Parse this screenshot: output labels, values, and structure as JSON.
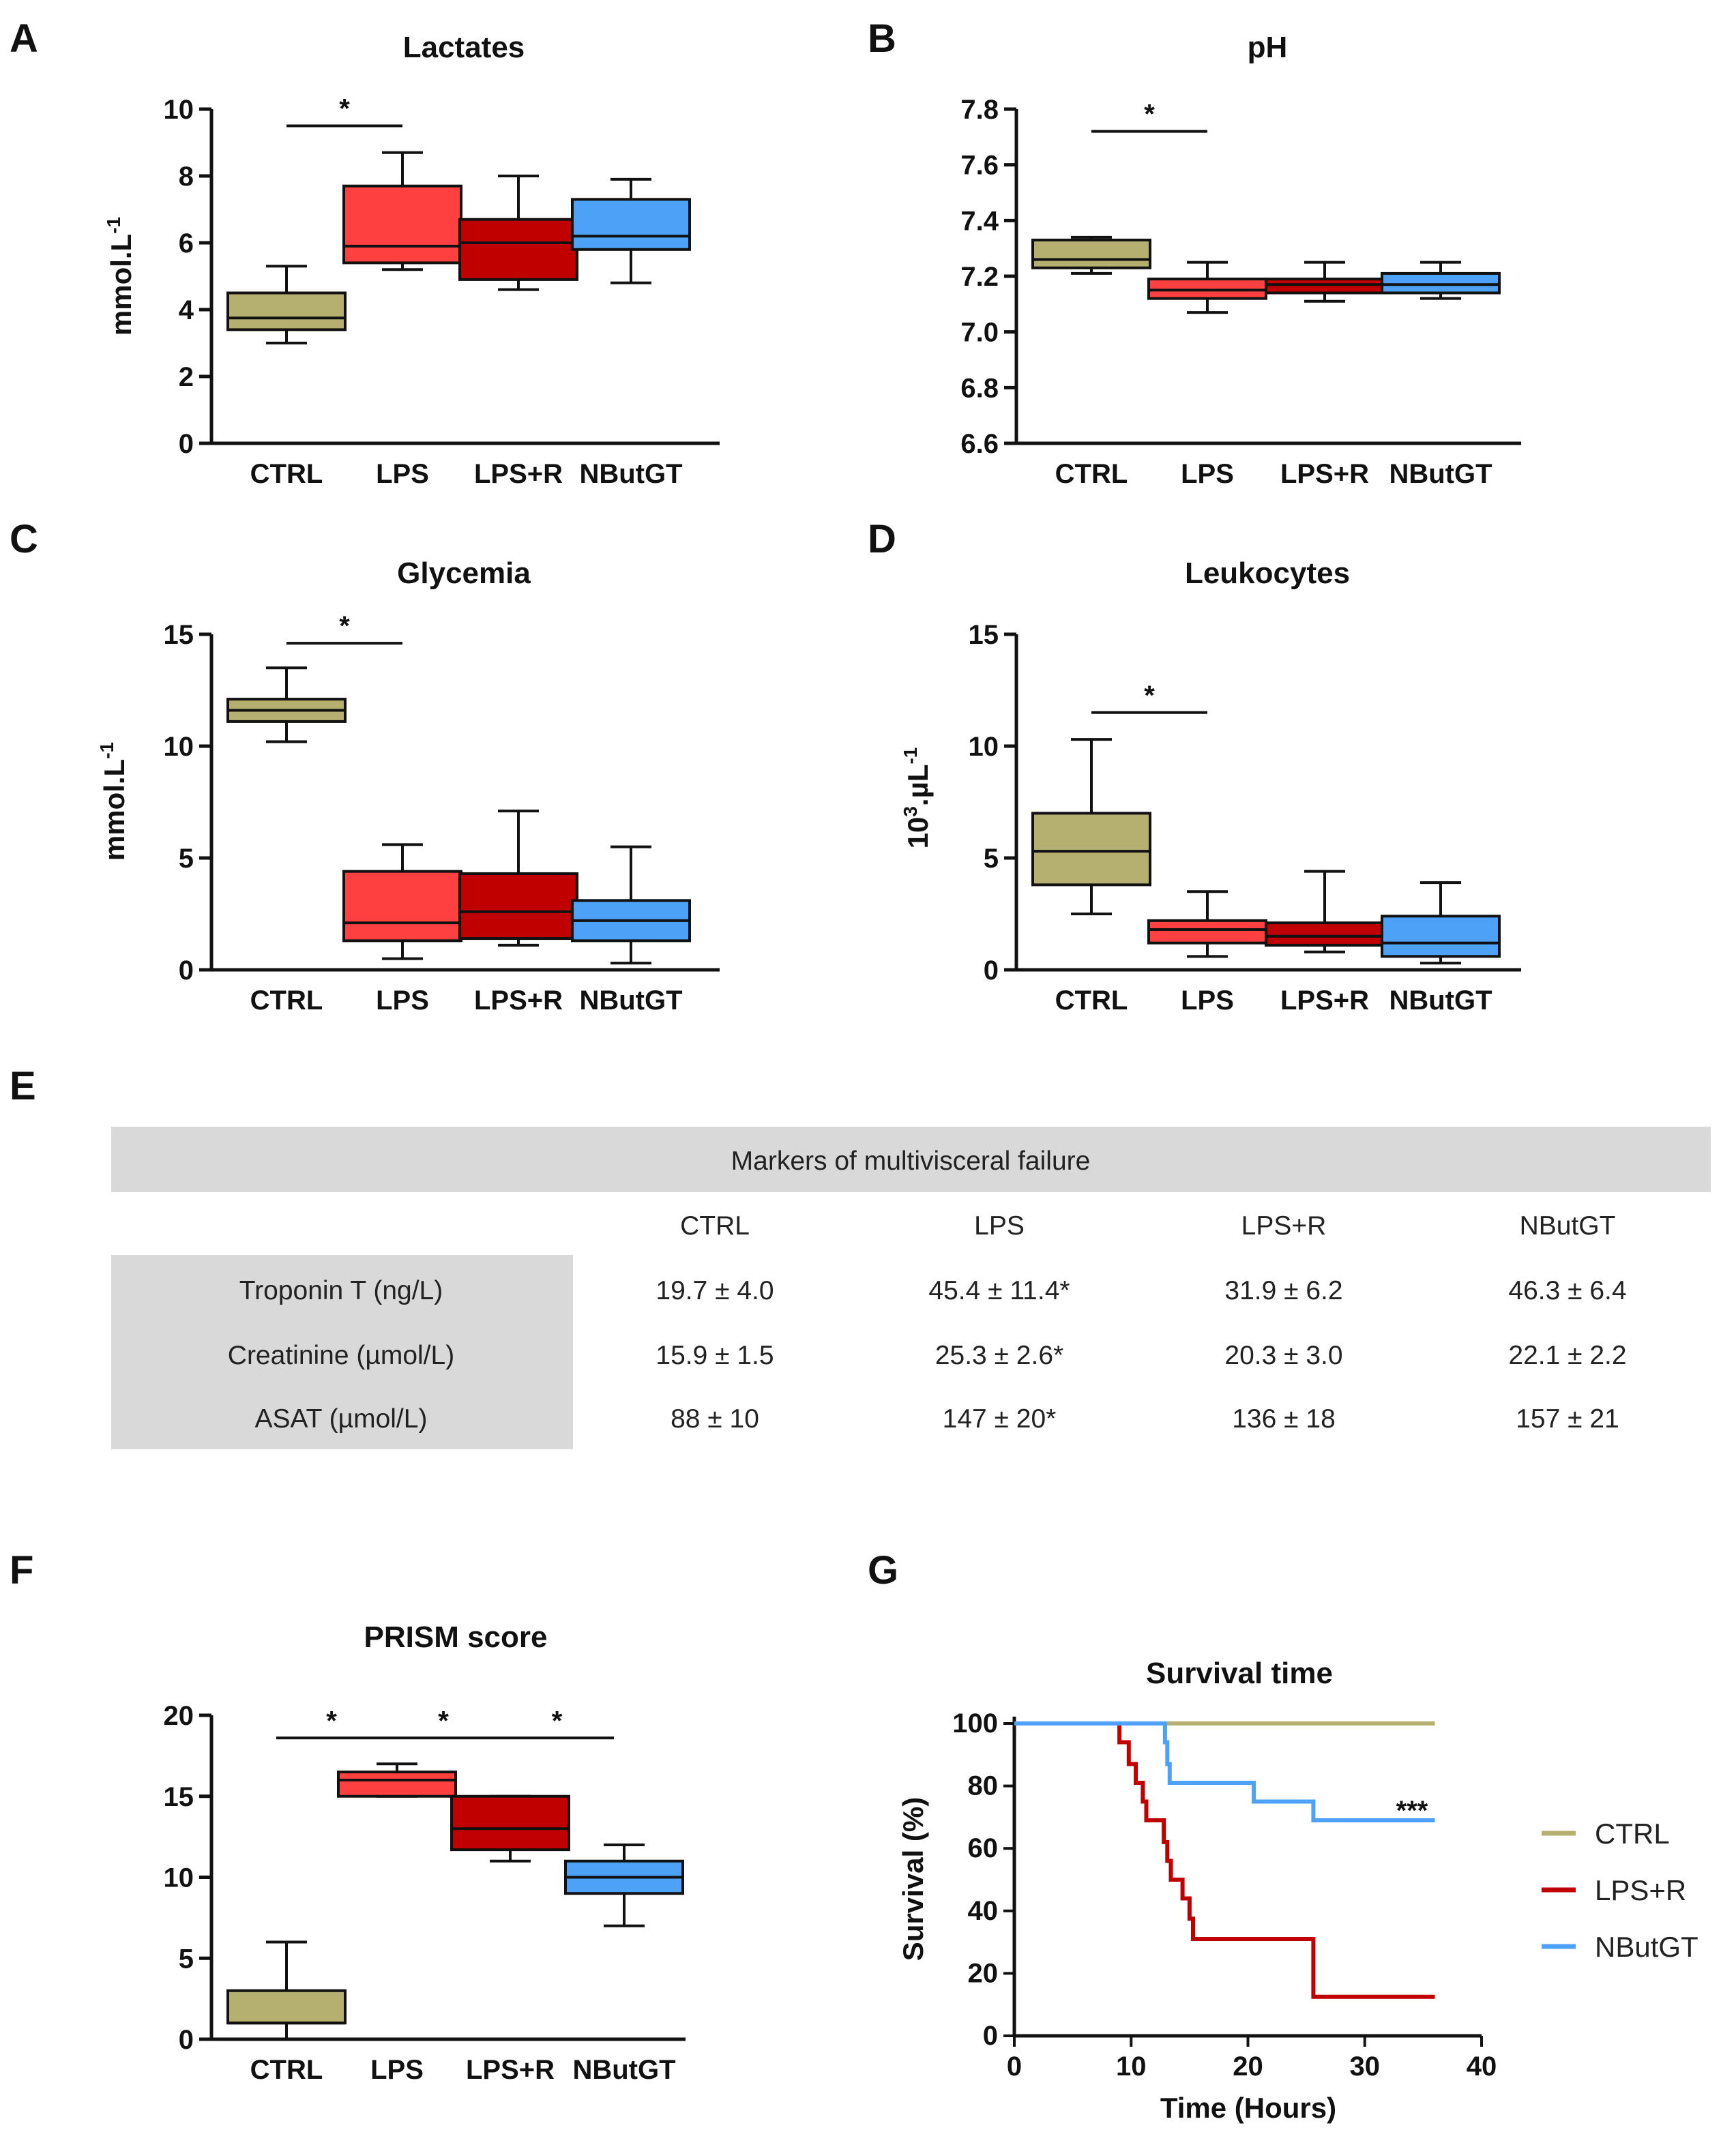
{
  "chart_data": [
    {
      "panel": "A",
      "type": "box",
      "title": "Lactates",
      "ylabel": "mmol.L",
      "ylabel_sup": "-1",
      "ylim": [
        0,
        10
      ],
      "yticks": [
        "0",
        "2",
        "4",
        "6",
        "8",
        "10"
      ],
      "categories": [
        "CTRL",
        "LPS",
        "LPS+R",
        "NButGT"
      ],
      "colors": [
        "#b5b06f",
        "#ff4040",
        "#c00000",
        "#4da2f7"
      ],
      "boxes": [
        {
          "min": 3.0,
          "q1": 3.4,
          "median": 3.75,
          "q3": 4.5,
          "max": 5.3
        },
        {
          "min": 5.2,
          "q1": 5.4,
          "median": 5.9,
          "q3": 7.7,
          "max": 8.7
        },
        {
          "min": 4.6,
          "q1": 4.9,
          "median": 6.0,
          "q3": 6.7,
          "max": 8.0
        },
        {
          "min": 4.8,
          "q1": 5.8,
          "median": 6.2,
          "q3": 7.3,
          "max": 7.9
        }
      ],
      "significance": [
        {
          "from": 0,
          "to": 1,
          "y": 9.5,
          "label": "*"
        }
      ]
    },
    {
      "panel": "B",
      "type": "box",
      "title": "pH",
      "ylabel": "",
      "ylabel_sup": "",
      "ylim": [
        6.6,
        7.8
      ],
      "yticks": [
        "6.6",
        "6.8",
        "7.0",
        "7.2",
        "7.4",
        "7.6",
        "7.8"
      ],
      "categories": [
        "CTRL",
        "LPS",
        "LPS+R",
        "NButGT"
      ],
      "colors": [
        "#b5b06f",
        "#ff4040",
        "#c00000",
        "#4da2f7"
      ],
      "boxes": [
        {
          "min": 7.21,
          "q1": 7.23,
          "median": 7.26,
          "q3": 7.33,
          "max": 7.34
        },
        {
          "min": 7.07,
          "q1": 7.12,
          "median": 7.15,
          "q3": 7.19,
          "max": 7.25
        },
        {
          "min": 7.11,
          "q1": 7.14,
          "median": 7.17,
          "q3": 7.19,
          "max": 7.25
        },
        {
          "min": 7.12,
          "q1": 7.14,
          "median": 7.17,
          "q3": 7.21,
          "max": 7.25
        }
      ],
      "significance": [
        {
          "from": 0,
          "to": 1,
          "y": 7.72,
          "label": "*"
        }
      ]
    },
    {
      "panel": "C",
      "type": "box",
      "title": "Glycemia",
      "ylabel": "mmol.L",
      "ylabel_sup": "-1",
      "ylim": [
        0,
        15
      ],
      "yticks": [
        "0",
        "5",
        "10",
        "15"
      ],
      "categories": [
        "CTRL",
        "LPS",
        "LPS+R",
        "NButGT"
      ],
      "colors": [
        "#b5b06f",
        "#ff4040",
        "#c00000",
        "#4da2f7"
      ],
      "boxes": [
        {
          "min": 10.2,
          "q1": 11.1,
          "median": 11.6,
          "q3": 12.1,
          "max": 13.5
        },
        {
          "min": 0.5,
          "q1": 1.3,
          "median": 2.1,
          "q3": 4.4,
          "max": 5.6
        },
        {
          "min": 1.1,
          "q1": 1.4,
          "median": 2.6,
          "q3": 4.3,
          "max": 7.1
        },
        {
          "min": 0.3,
          "q1": 1.3,
          "median": 2.2,
          "q3": 3.1,
          "max": 5.5
        }
      ],
      "significance": [
        {
          "from": 0,
          "to": 1,
          "y": 14.6,
          "label": "*"
        }
      ]
    },
    {
      "panel": "D",
      "type": "box",
      "title": "Leukocytes",
      "ylabel": "10",
      "ylabel_mid": ".µL",
      "ylabel_sup1": "3",
      "ylabel_sup": "-1",
      "ylim": [
        0,
        15
      ],
      "yticks": [
        "0",
        "5",
        "10",
        "15"
      ],
      "categories": [
        "CTRL",
        "LPS",
        "LPS+R",
        "NButGT"
      ],
      "colors": [
        "#b5b06f",
        "#ff4040",
        "#c00000",
        "#4da2f7"
      ],
      "boxes": [
        {
          "min": 2.5,
          "q1": 3.8,
          "median": 5.3,
          "q3": 7.0,
          "max": 10.3
        },
        {
          "min": 0.6,
          "q1": 1.2,
          "median": 1.8,
          "q3": 2.2,
          "max": 3.5
        },
        {
          "min": 0.8,
          "q1": 1.1,
          "median": 1.5,
          "q3": 2.1,
          "max": 4.4
        },
        {
          "min": 0.3,
          "q1": 0.6,
          "median": 1.2,
          "q3": 2.4,
          "max": 3.9
        }
      ],
      "significance": [
        {
          "from": 0,
          "to": 1,
          "y": 11.5,
          "label": "*"
        }
      ]
    },
    {
      "panel": "E",
      "type": "table",
      "title": "Markers of multivisceral failure",
      "columns": [
        "CTRL",
        "LPS",
        "LPS+R",
        "NButGT"
      ],
      "rows": [
        {
          "label": "Troponin T (ng/L)",
          "values": [
            "19.7 ± 4.0",
            "45.4 ± 11.4*",
            "31.9 ± 6.2",
            "46.3 ± 6.4"
          ]
        },
        {
          "label": "Creatinine (µmol/L)",
          "values": [
            "15.9 ± 1.5",
            "25.3 ± 2.6*",
            "20.3 ± 3.0",
            "22.1 ± 2.2"
          ]
        },
        {
          "label": "ASAT (µmol/L)",
          "values": [
            "88 ± 10",
            "147 ± 20*",
            "136 ± 18",
            "157 ± 21"
          ]
        }
      ]
    },
    {
      "panel": "F",
      "type": "box",
      "title": "PRISM score",
      "ylabel": "",
      "ylabel_sup": "",
      "ylim": [
        0,
        20
      ],
      "yticks": [
        "0",
        "5",
        "10",
        "15",
        "20"
      ],
      "categories": [
        "CTRL",
        "LPS",
        "LPS+R",
        "NButGT"
      ],
      "colors": [
        "#b5b06f",
        "#ff4040",
        "#c00000",
        "#4da2f7"
      ],
      "boxes": [
        {
          "min": 0,
          "q1": 1.0,
          "median": 1.0,
          "q3": 3.0,
          "max": 6.0
        },
        {
          "min": 15.0,
          "q1": 15.0,
          "median": 16.0,
          "q3": 16.5,
          "max": 17.0
        },
        {
          "min": 11.0,
          "q1": 11.7,
          "median": 13.0,
          "q3": 15.0,
          "max": 15.0
        },
        {
          "min": 7.0,
          "q1": 9.0,
          "median": 10.0,
          "q3": 11.0,
          "max": 12.0
        }
      ],
      "significance": [
        {
          "from": 0,
          "to": 1,
          "y": 18.6,
          "label": "*"
        },
        {
          "from": 1,
          "to": 2,
          "y": 18.6,
          "label": "*"
        },
        {
          "from": 2,
          "to": 3,
          "y": 18.6,
          "label": "*"
        }
      ]
    },
    {
      "panel": "G",
      "type": "line",
      "title": "Survival time",
      "xlabel": "Time (Hours)",
      "ylabel": "Survival (%)",
      "xlim": [
        0,
        40
      ],
      "ylim": [
        0,
        100
      ],
      "xticks": [
        "0",
        "10",
        "20",
        "30",
        "40"
      ],
      "yticks": [
        "0",
        "20",
        "40",
        "60",
        "80",
        "100"
      ],
      "annotation": "***",
      "series": [
        {
          "name": "CTRL",
          "color": "#b5b06f",
          "steps": [
            [
              0,
              100
            ],
            [
              36,
              100
            ]
          ]
        },
        {
          "name": "LPS+R",
          "color": "#c00000",
          "steps": [
            [
              0,
              100
            ],
            [
              9,
              100
            ],
            [
              9,
              94
            ],
            [
              9.8,
              94
            ],
            [
              9.8,
              87
            ],
            [
              10.4,
              87
            ],
            [
              10.4,
              81
            ],
            [
              11,
              81
            ],
            [
              11,
              75
            ],
            [
              11.3,
              75
            ],
            [
              11.3,
              69
            ],
            [
              12.8,
              69
            ],
            [
              12.8,
              62
            ],
            [
              13.1,
              62
            ],
            [
              13.1,
              56
            ],
            [
              13.4,
              56
            ],
            [
              13.4,
              50
            ],
            [
              14.4,
              50
            ],
            [
              14.4,
              44
            ],
            [
              15,
              44
            ],
            [
              15,
              37.5
            ],
            [
              15.3,
              37.5
            ],
            [
              15.3,
              31
            ],
            [
              25.6,
              31
            ],
            [
              25.6,
              12.5
            ],
            [
              36,
              12.5
            ]
          ]
        },
        {
          "name": "NButGT",
          "color": "#4da2f7",
          "steps": [
            [
              0,
              100
            ],
            [
              12.9,
              100
            ],
            [
              12.9,
              94
            ],
            [
              13.1,
              94
            ],
            [
              13.1,
              87
            ],
            [
              13.3,
              87
            ],
            [
              13.3,
              81
            ],
            [
              20.5,
              81
            ],
            [
              20.5,
              75
            ],
            [
              25.6,
              75
            ],
            [
              25.6,
              69
            ],
            [
              36,
              69
            ]
          ]
        }
      ]
    }
  ]
}
